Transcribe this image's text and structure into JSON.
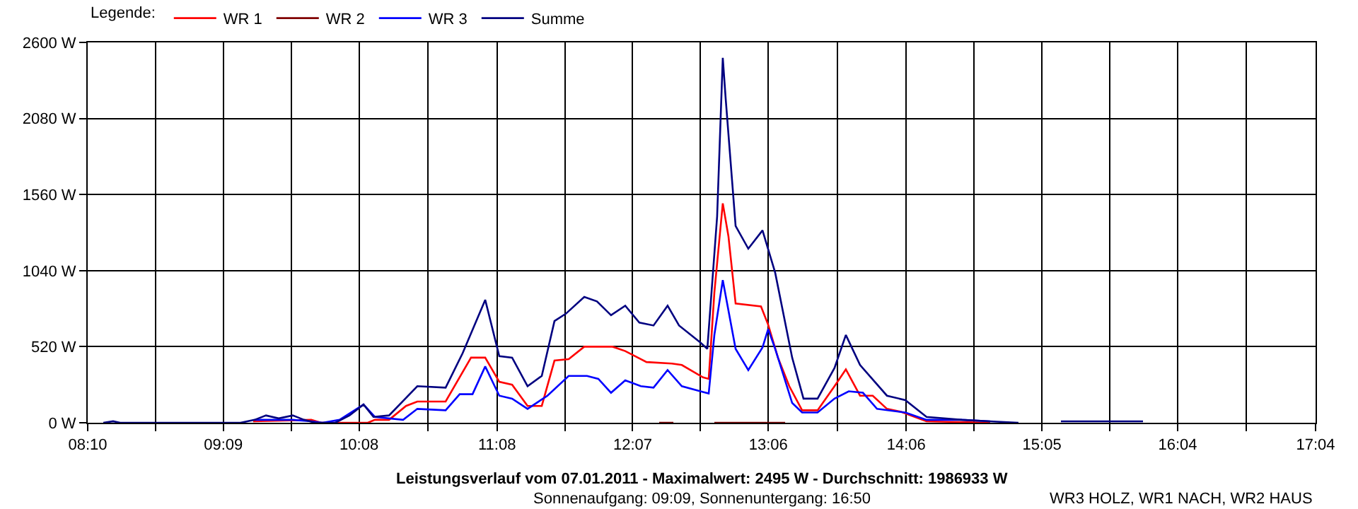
{
  "chart_data": {
    "type": "line",
    "title": "Leistungsverlauf vom 07.01.2011 - Maximalwert: 2495 W - Durchschnitt: 1986933 W",
    "subtitle": "Sonnenaufgang: 09:09, Sonnenuntergang: 16:50",
    "legend_title": "Legende:",
    "annotations": [
      "WR3 HOLZ, WR1 NACH, WR2 HAUS"
    ],
    "series": [
      {
        "name": "WR 1",
        "color": "#ff0000",
        "x": [
          9.366,
          9.787,
          9.858,
          10.197,
          10.248,
          10.351,
          10.474,
          10.556,
          10.761,
          10.945,
          11.048,
          11.15,
          11.243,
          11.355,
          11.458,
          11.55,
          11.653,
          11.766,
          11.971,
          12.063,
          12.217,
          12.401,
          12.473,
          12.627,
          12.668,
          12.709,
          12.77,
          12.811,
          12.863,
          13.047,
          13.099,
          13.17,
          13.252,
          13.345,
          13.457,
          13.58,
          13.662,
          13.765,
          13.857,
          13.96,
          14.062,
          14.247,
          14.708
        ],
        "values": [
          10,
          20,
          0,
          0,
          20,
          20,
          115,
          145,
          145,
          445,
          445,
          280,
          260,
          115,
          115,
          425,
          435,
          520,
          520,
          490,
          415,
          405,
          395,
          310,
          300,
          890,
          1500,
          1275,
          815,
          795,
          670,
          445,
          250,
          85,
          85,
          250,
          365,
          185,
          185,
          95,
          75,
          10,
          0
        ]
      },
      {
        "name": "WR 2",
        "color": "#800000",
        "x": [
          12.309,
          12.412,
          12.55,
          12.709,
          13.222
        ],
        "values": [
          0,
          0,
          null,
          0,
          0
        ]
      },
      {
        "name": "WR 3",
        "color": "#0000ff",
        "x": [
          9.377,
          9.653,
          9.787,
          9.869,
          9.992,
          10.166,
          10.248,
          10.453,
          10.556,
          10.761,
          10.863,
          10.956,
          11.048,
          11.15,
          11.243,
          11.355,
          11.499,
          11.653,
          11.786,
          11.868,
          11.96,
          12.063,
          12.176,
          12.268,
          12.37,
          12.473,
          12.627,
          12.668,
          12.709,
          12.77,
          12.863,
          12.955,
          13.058,
          13.099,
          13.15,
          13.273,
          13.345,
          13.457,
          13.58,
          13.683,
          13.786,
          13.888,
          14.093,
          14.247,
          14.503,
          14.708
        ],
        "values": [
          20,
          20,
          10,
          0,
          20,
          125,
          40,
          20,
          95,
          85,
          195,
          195,
          385,
          185,
          165,
          95,
          185,
          320,
          320,
          300,
          205,
          290,
          250,
          240,
          360,
          250,
          210,
          200,
          600,
          975,
          505,
          360,
          515,
          640,
          505,
          135,
          70,
          70,
          165,
          215,
          205,
          95,
          70,
          20,
          20,
          10
        ]
      },
      {
        "name": "Summe",
        "color": "#000080",
        "x": [
          8.28,
          8.351,
          8.402,
          9.274,
          9.377,
          9.459,
          9.551,
          9.653,
          9.735,
          9.817,
          9.961,
          10.064,
          10.166,
          10.238,
          10.351,
          10.556,
          10.761,
          10.884,
          11.048,
          11.15,
          11.243,
          11.355,
          11.458,
          11.55,
          11.632,
          11.766,
          11.858,
          11.96,
          12.063,
          12.165,
          12.268,
          12.37,
          12.453,
          12.606,
          12.658,
          12.729,
          12.77,
          12.791,
          12.863,
          12.955,
          13.058,
          13.15,
          13.273,
          13.355,
          13.457,
          13.58,
          13.662,
          13.765,
          13.96,
          14.093,
          14.247,
          14.503,
          14.708,
          14.913,
          15.067,
          15.221,
          15.816
        ],
        "values": [
          0,
          10,
          0,
          0,
          20,
          50,
          30,
          50,
          20,
          0,
          0,
          50,
          125,
          40,
          50,
          250,
          240,
          475,
          840,
          455,
          445,
          250,
          320,
          695,
          745,
          860,
          830,
          735,
          800,
          685,
          665,
          800,
          665,
          550,
          505,
          1410,
          2495,
          2215,
          1345,
          1190,
          1315,
          1025,
          445,
          165,
          165,
          375,
          600,
          395,
          185,
          155,
          40,
          20,
          10,
          0,
          null,
          10,
          10
        ]
      }
    ],
    "xlim": [
      8.1667,
      17.0667
    ],
    "xticks": [
      {
        "value": 8.1667,
        "label": "08:10"
      },
      {
        "value": 8.6583,
        "label": null
      },
      {
        "value": 9.15,
        "label": "09:09"
      },
      {
        "value": 9.6417,
        "label": null
      },
      {
        "value": 10.1333,
        "label": "10:08"
      },
      {
        "value": 10.6333,
        "label": null
      },
      {
        "value": 11.1333,
        "label": "11:08"
      },
      {
        "value": 11.625,
        "label": null
      },
      {
        "value": 12.1167,
        "label": "12:07"
      },
      {
        "value": 12.6083,
        "label": null
      },
      {
        "value": 13.1,
        "label": "13:06"
      },
      {
        "value": 13.6,
        "label": null
      },
      {
        "value": 14.1,
        "label": "14:06"
      },
      {
        "value": 14.5917,
        "label": null
      },
      {
        "value": 15.0833,
        "label": "15:05"
      },
      {
        "value": 15.575,
        "label": null
      },
      {
        "value": 16.0667,
        "label": "16:04"
      },
      {
        "value": 16.5667,
        "label": null
      },
      {
        "value": 17.0667,
        "label": "17:04"
      }
    ],
    "ylim": [
      0,
      2600
    ],
    "yticks": [
      {
        "value": 0,
        "label": "0 W"
      },
      {
        "value": 520,
        "label": "520 W"
      },
      {
        "value": 1040,
        "label": "1040 W"
      },
      {
        "value": 1560,
        "label": "1560 W"
      },
      {
        "value": 2080,
        "label": "2080 W"
      },
      {
        "value": 2600,
        "label": "2600 W"
      }
    ],
    "grid": true,
    "legend": "top left",
    "marker": "none",
    "line_style": "solid"
  }
}
